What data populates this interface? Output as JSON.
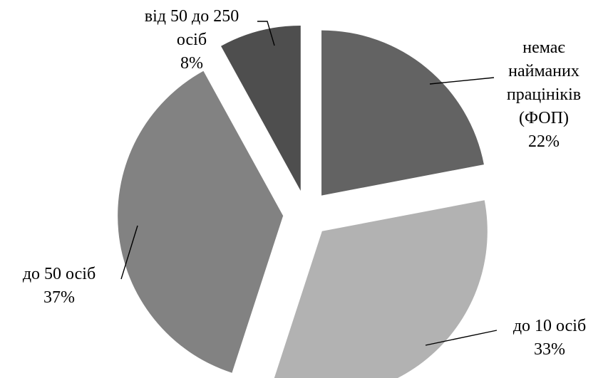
{
  "chart_data": {
    "type": "pie",
    "exploded": true,
    "labels_with_leader_lines": true,
    "slices": [
      {
        "label_lines": [
          "немає",
          "найманих",
          "працініків",
          "(ФОП)"
        ],
        "value": 22,
        "percent_label": "22%",
        "color": "#636363"
      },
      {
        "label_lines": [
          "до 10 осіб"
        ],
        "value": 33,
        "percent_label": "33%",
        "color": "#b2b2b2"
      },
      {
        "label_lines": [
          "до 50 осіб"
        ],
        "value": 37,
        "percent_label": "37%",
        "color": "#828282"
      },
      {
        "label_lines": [
          "від 50 до 250",
          "осіб"
        ],
        "value": 8,
        "percent_label": "8%",
        "color": "#4e4e4e"
      }
    ]
  }
}
